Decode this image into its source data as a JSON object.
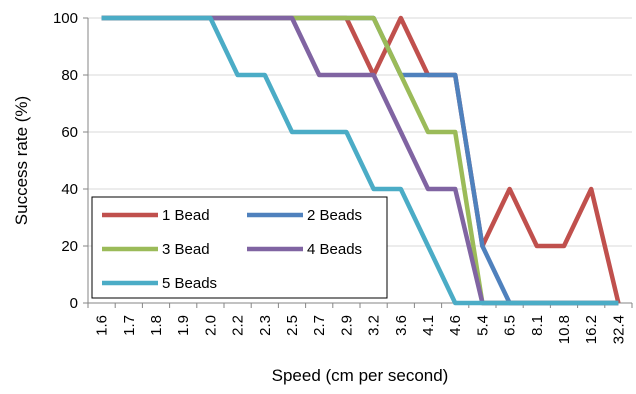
{
  "chart_data": {
    "type": "line",
    "title": "",
    "xlabel": "Speed (cm per second)",
    "ylabel": "Success rate (%)",
    "categories": [
      "1.6",
      "1.7",
      "1.8",
      "1.9",
      "2.0",
      "2.2",
      "2.3",
      "2.5",
      "2.7",
      "2.9",
      "3.2",
      "3.6",
      "4.1",
      "4.6",
      "5.4",
      "6.5",
      "8.1",
      "10.8",
      "16.2",
      "32.4"
    ],
    "yticks": [
      0,
      20,
      40,
      60,
      80,
      100
    ],
    "ylim": [
      0,
      100
    ],
    "grid": "horizontal",
    "legend_position": "bottom-left",
    "series": [
      {
        "name": "1 Bead",
        "color": "#C0504D",
        "values": [
          100,
          100,
          100,
          100,
          100,
          100,
          100,
          100,
          100,
          100,
          80,
          100,
          80,
          80,
          20,
          40,
          20,
          20,
          40,
          0
        ]
      },
      {
        "name": "2 Beads",
        "color": "#4F81BD",
        "values": [
          100,
          100,
          100,
          100,
          100,
          100,
          100,
          100,
          100,
          100,
          100,
          80,
          80,
          80,
          20,
          0,
          0,
          0,
          0,
          0
        ]
      },
      {
        "name": "3 Bead",
        "color": "#9BBB59",
        "values": [
          100,
          100,
          100,
          100,
          100,
          100,
          100,
          100,
          100,
          100,
          100,
          80,
          60,
          60,
          0,
          0,
          0,
          0,
          0,
          0
        ]
      },
      {
        "name": "4 Beads",
        "color": "#8064A2",
        "values": [
          100,
          100,
          100,
          100,
          100,
          100,
          100,
          100,
          80,
          80,
          80,
          60,
          40,
          40,
          0,
          0,
          0,
          0,
          0,
          0
        ]
      },
      {
        "name": "5 Beads",
        "color": "#4BACC6",
        "values": [
          100,
          100,
          100,
          100,
          100,
          80,
          80,
          60,
          60,
          60,
          40,
          40,
          20,
          0,
          0,
          0,
          0,
          0,
          0,
          0
        ]
      }
    ]
  }
}
